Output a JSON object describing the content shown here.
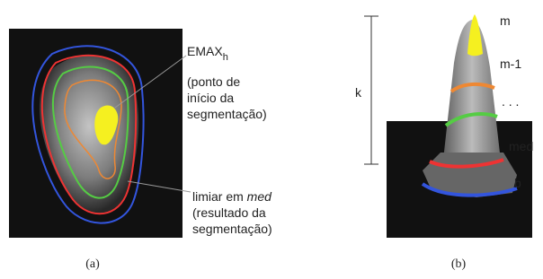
{
  "panel_a": {
    "annotation_top": {
      "main": "EMAX",
      "sub": "h",
      "lines": [
        "(ponto de",
        "início da",
        "segmentação)"
      ]
    },
    "annotation_bottom": {
      "prefix": "limiar em",
      "emph": "med",
      "lines": [
        "(resultado da",
        "segmentação)"
      ]
    },
    "caption": "(a)"
  },
  "panel_b": {
    "labels": [
      "m",
      "m-1",
      ". . .",
      "med",
      "b"
    ],
    "k_label": "k",
    "caption": "(b)"
  }
}
